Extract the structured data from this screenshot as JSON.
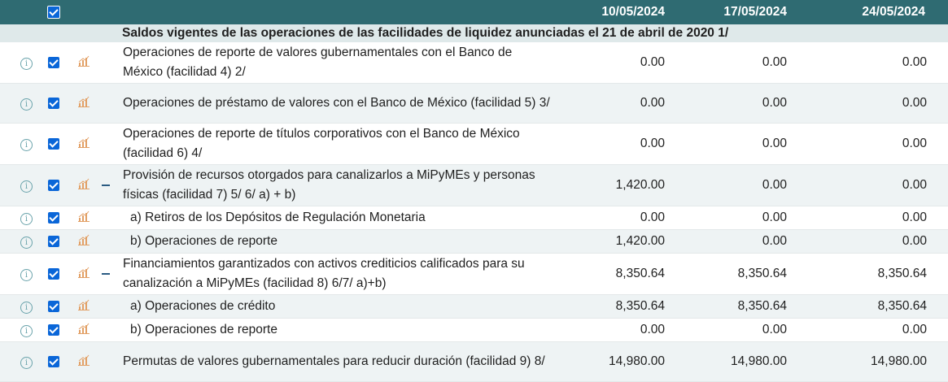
{
  "header": {
    "dates": [
      "10/05/2024",
      "17/05/2024",
      "24/05/2024"
    ]
  },
  "section": {
    "title": "Saldos vigentes de las operaciones de las facilidades de liquidez anunciadas el 21 de abril de 2020 1/"
  },
  "icons": {
    "info": "info-circle-icon",
    "checkbox": "checked-checkbox-icon",
    "chart": "bar-chart-icon",
    "collapse": "minus-collapse-icon"
  },
  "colors": {
    "header_bg": "#2f6b72",
    "section_bg": "#dfe9ea",
    "checkbox": "#0a66d8",
    "chart_icon": "#e2a066"
  },
  "rows": [
    {
      "label": "Operaciones de reporte de valores gubernamentales con el Banco de México (facilidad 4) 2/",
      "v1": "0.00",
      "v2": "0.00",
      "v3": "0.00"
    },
    {
      "label": "Operaciones de préstamo de valores con el Banco de México (facilidad 5) 3/",
      "v1": "0.00",
      "v2": "0.00",
      "v3": "0.00"
    },
    {
      "label": "Operaciones de reporte de títulos corporativos con el Banco de México (facilidad 6) 4/",
      "v1": "0.00",
      "v2": "0.00",
      "v3": "0.00"
    },
    {
      "label": "Provisión de recursos otorgados para canalizarlos a MiPyMEs y personas físicas (facilidad 7) 5/ 6/ a) + b)",
      "v1": "1,420.00",
      "v2": "0.00",
      "v3": "0.00"
    },
    {
      "label": "a) Retiros de los Depósitos de Regulación Monetaria",
      "v1": "0.00",
      "v2": "0.00",
      "v3": "0.00"
    },
    {
      "label": "b) Operaciones de reporte",
      "v1": "1,420.00",
      "v2": "0.00",
      "v3": "0.00"
    },
    {
      "label": "Financiamientos garantizados con activos crediticios calificados para su canalización a MiPyMEs (facilidad 8) 6/7/ a)+b)",
      "v1": "8,350.64",
      "v2": "8,350.64",
      "v3": "8,350.64"
    },
    {
      "label": "a) Operaciones de crédito",
      "v1": "8,350.64",
      "v2": "8,350.64",
      "v3": "8,350.64"
    },
    {
      "label": "b) Operaciones de reporte",
      "v1": "0.00",
      "v2": "0.00",
      "v3": "0.00"
    },
    {
      "label": "Permutas de valores gubernamentales para reducir duración (facilidad 9) 8/",
      "v1": "14,980.00",
      "v2": "14,980.00",
      "v3": "14,980.00"
    }
  ]
}
